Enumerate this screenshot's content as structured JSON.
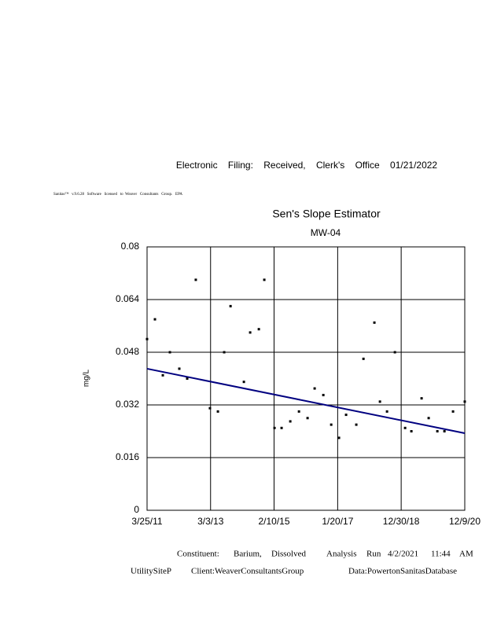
{
  "header": "Electronic    Filing:    Received,    Clerk's    Office    01/21/2022",
  "software_line": "Sanitas™   v.9.6.28   Software   licensed   to  Weaver   Consultants   Group.   EPA",
  "chart_data": {
    "type": "scatter",
    "title": "Sen's Slope Estimator",
    "subtitle": "MW-04",
    "y_label": "mg/L",
    "color": "#000000",
    "x": [
      "2011-03-25",
      "2011-06-21",
      "2011-09-17",
      "2011-12-05",
      "2012-03-19",
      "2012-06-15",
      "2012-09-19",
      "2013-02-24",
      "2013-05-24",
      "2013-08-02",
      "2013-10-12",
      "2014-03-10",
      "2014-05-19",
      "2014-08-24",
      "2014-10-24",
      "2015-02-15",
      "2015-05-05",
      "2015-08-10",
      "2015-11-15",
      "2016-02-19",
      "2016-05-08",
      "2016-08-13",
      "2016-11-09",
      "2017-02-04",
      "2017-04-24",
      "2017-08-16",
      "2017-11-04",
      "2018-03-06",
      "2018-05-07",
      "2018-07-25",
      "2018-10-21",
      "2019-02-12",
      "2019-04-23",
      "2019-08-15",
      "2019-11-02",
      "2020-02-07",
      "2020-04-26",
      "2020-07-31",
      "2020-12-09"
    ],
    "values": [
      0.052,
      0.058,
      0.041,
      0.048,
      0.043,
      0.04,
      0.07,
      0.031,
      0.03,
      0.048,
      0.062,
      0.039,
      0.054,
      0.055,
      0.07,
      0.025,
      0.025,
      0.027,
      0.03,
      0.028,
      0.037,
      0.035,
      0.026,
      0.022,
      0.029,
      0.026,
      0.046,
      0.057,
      0.033,
      0.03,
      0.048,
      0.025,
      0.024,
      0.034,
      0.028,
      0.024,
      0.024,
      0.03,
      0.033
    ],
    "trend": {
      "x": [
        "2011-03-25",
        "2020-12-09"
      ],
      "values": [
        0.043,
        0.0234
      ],
      "color": "#000080"
    },
    "xlim": [
      "2011-03-25",
      "2020-12-09"
    ],
    "xticks": [
      {
        "value": "2011-03-25",
        "label": "3/25/11"
      },
      {
        "value": "2013-03-03",
        "label": "3/3/13"
      },
      {
        "value": "2015-02-10",
        "label": "2/10/15"
      },
      {
        "value": "2017-01-20",
        "label": "1/20/17"
      },
      {
        "value": "2018-12-30",
        "label": "12/30/18"
      },
      {
        "value": "2020-12-09",
        "label": "12/9/20"
      }
    ],
    "ylim": [
      0,
      0.08
    ],
    "yticks": [
      0,
      0.016,
      0.032,
      0.048,
      0.064,
      0.08
    ],
    "grid": true
  },
  "footer": {
    "line1": [
      "Constituent:",
      "Barium,",
      "Dissolved",
      "Analysis",
      "Run",
      "4/2/2021",
      "11:44",
      "AM"
    ],
    "line2": [
      "UtilitySiteP",
      "Client:WeaverConsultantsGroup",
      "Data:PowertonSanitasDatabase"
    ]
  }
}
